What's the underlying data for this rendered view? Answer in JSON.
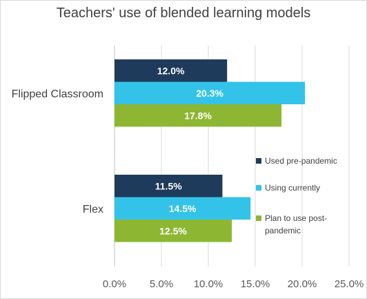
{
  "chart_data": {
    "type": "bar",
    "orientation": "horizontal",
    "title": "Teachers' use of blended learning models",
    "xlabel": "",
    "ylabel": "",
    "xlim": [
      0,
      25
    ],
    "x_ticks": [
      0,
      5,
      10,
      15,
      20,
      25
    ],
    "x_tick_labels": [
      "0.0%",
      "5.0%",
      "10.0%",
      "15.0%",
      "20.0%",
      "25.0%"
    ],
    "grid": "vertical",
    "legend": "right",
    "categories": [
      "Flipped Classroom",
      "Flex"
    ],
    "series": [
      {
        "name": "Used pre-pandemic",
        "color": "#1f3b5c",
        "values": [
          12.0,
          11.5
        ],
        "labels": [
          "12.0%",
          "11.5%"
        ]
      },
      {
        "name": "Using currently",
        "color": "#33c3e8",
        "values": [
          20.3,
          14.5
        ],
        "labels": [
          "20.3%",
          "14.5%"
        ]
      },
      {
        "name": "Plan to use post-pandemic",
        "color": "#8db733",
        "values": [
          17.8,
          12.5
        ],
        "labels": [
          "17.8%",
          "12.5%"
        ],
        "legend_lines": [
          "Plan to use post-",
          "pandemic"
        ]
      }
    ]
  }
}
